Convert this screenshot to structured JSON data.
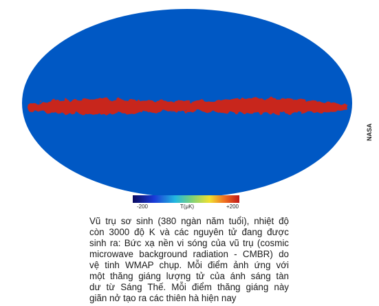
{
  "credit": "NASA",
  "colorbar": {
    "min_label": "-200",
    "unit_label": "T(μK)",
    "max_label": "+200"
  },
  "caption": {
    "lines": [
      "Vũ trụ sơ sinh (380 ngàn năm tuổi), nhiệt độ",
      "còn 3000 độ K và các nguyên tử đang được",
      "sinh ra: Bức xạ nền vi sóng của vũ trụ (cosmic",
      "microwave background radiation - CMBR) do",
      "vệ tinh WMAP chụp. Mỗi điểm ảnh ứng với",
      "một thăng giáng lượng tử của ánh sáng tàn",
      "dư từ Sáng Thế. Mỗi điểm thăng giáng này",
      "giãn nở tạo ra các thiên hà hiện nay"
    ]
  }
}
